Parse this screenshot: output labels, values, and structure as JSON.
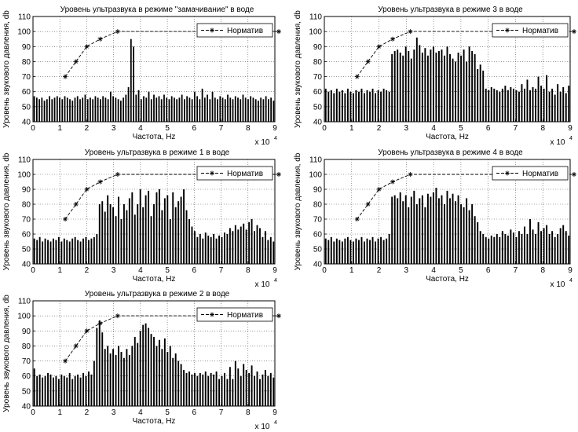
{
  "chart_data": [
    {
      "type": "bar",
      "title": "Уровень ультразвука в режиме \"замачивание\" в воде",
      "xlabel": "Частота, Hz",
      "ylabel": "Уровень звукового давления, db",
      "x_multiplier": "x 10",
      "x_exponent": "4",
      "xlim": [
        0,
        9
      ],
      "ylim": [
        40,
        110
      ],
      "xticks": [
        0,
        1,
        2,
        3,
        4,
        5,
        6,
        7,
        8,
        9
      ],
      "yticks": [
        40,
        50,
        60,
        70,
        80,
        90,
        100,
        110
      ],
      "grid": true,
      "legend": {
        "position": "top-right",
        "entries": [
          "Норматив"
        ]
      },
      "bar_color": "#000000",
      "norm": {
        "x": [
          1.2,
          1.6,
          2.0,
          2.5,
          3.15,
          9.0
        ],
        "y": [
          70,
          80,
          90,
          95,
          100,
          100
        ]
      },
      "bars": [
        57,
        56,
        55,
        56,
        54,
        55,
        57,
        55,
        56,
        57,
        56,
        55,
        57,
        56,
        55,
        54,
        56,
        57,
        55,
        56,
        58,
        55,
        56,
        55,
        57,
        56,
        55,
        57,
        56,
        55,
        60,
        57,
        56,
        55,
        54,
        56,
        58,
        63,
        95,
        90,
        58,
        61,
        55,
        57,
        56,
        60,
        55,
        58,
        56,
        57,
        55,
        58,
        56,
        55,
        57,
        56,
        55,
        56,
        58,
        55,
        57,
        56,
        55,
        60,
        57,
        55,
        62,
        56,
        58,
        55,
        60,
        56,
        55,
        57,
        56,
        55,
        58,
        56,
        55,
        57,
        56,
        55,
        58,
        56,
        55,
        57,
        56,
        55,
        54,
        56,
        55,
        57,
        55,
        56,
        54
      ]
    },
    {
      "type": "bar",
      "title": "Уровень ультразвука в режиме 3 в воде",
      "xlabel": "Частота, Hz",
      "ylabel": "Уровень звукового давления, db",
      "x_multiplier": "x 10",
      "x_exponent": "4",
      "xlim": [
        0,
        9
      ],
      "ylim": [
        40,
        110
      ],
      "xticks": [
        0,
        1,
        2,
        3,
        4,
        5,
        6,
        7,
        8,
        9
      ],
      "yticks": [
        40,
        50,
        60,
        70,
        80,
        90,
        100,
        110
      ],
      "grid": true,
      "legend": {
        "position": "top-right",
        "entries": [
          "Норматив"
        ]
      },
      "bar_color": "#000000",
      "norm": {
        "x": [
          1.2,
          1.6,
          2.0,
          2.5,
          3.15,
          9.0
        ],
        "y": [
          70,
          80,
          90,
          95,
          100,
          100
        ]
      },
      "bars": [
        62,
        60,
        61,
        59,
        62,
        60,
        61,
        59,
        62,
        60,
        59,
        61,
        60,
        62,
        59,
        61,
        60,
        62,
        59,
        61,
        60,
        62,
        61,
        60,
        85,
        87,
        88,
        86,
        84,
        90,
        87,
        82,
        88,
        96,
        91,
        86,
        89,
        84,
        88,
        90,
        86,
        87,
        88,
        84,
        90,
        85,
        82,
        80,
        86,
        84,
        88,
        80,
        90,
        87,
        85,
        75,
        78,
        74,
        62,
        61,
        63,
        62,
        61,
        60,
        62,
        64,
        61,
        63,
        62,
        61,
        60,
        65,
        62,
        68,
        61,
        63,
        62,
        70,
        64,
        62,
        71,
        60,
        62,
        58,
        65,
        60,
        63,
        59,
        64
      ]
    },
    {
      "type": "bar",
      "title": "Уровень ультразвука в режиме 1 в воде",
      "xlabel": "Частота, Hz",
      "ylabel": "Уровень звукового давления, db",
      "x_multiplier": "x 10",
      "x_exponent": "4",
      "xlim": [
        0,
        9
      ],
      "ylim": [
        40,
        110
      ],
      "xticks": [
        0,
        1,
        2,
        3,
        4,
        5,
        6,
        7,
        8,
        9
      ],
      "yticks": [
        40,
        50,
        60,
        70,
        80,
        90,
        100,
        110
      ],
      "grid": true,
      "legend": {
        "position": "top-right",
        "entries": [
          "Норматив"
        ]
      },
      "bar_color": "#000000",
      "norm": {
        "x": [
          1.2,
          1.6,
          2.0,
          2.5,
          3.15,
          9.0
        ],
        "y": [
          70,
          80,
          90,
          95,
          100,
          100
        ]
      },
      "bars": [
        57,
        56,
        58,
        55,
        57,
        56,
        55,
        57,
        56,
        58,
        55,
        57,
        56,
        55,
        57,
        58,
        56,
        55,
        57,
        58,
        56,
        57,
        58,
        60,
        80,
        82,
        75,
        86,
        80,
        78,
        72,
        85,
        70,
        80,
        76,
        84,
        88,
        73,
        80,
        90,
        78,
        86,
        89,
        72,
        80,
        88,
        90,
        76,
        84,
        86,
        70,
        88,
        78,
        82,
        85,
        90,
        76,
        70,
        65,
        62,
        58,
        60,
        57,
        61,
        59,
        58,
        60,
        57,
        59,
        58,
        61,
        60,
        64,
        62,
        66,
        63,
        65,
        67,
        63,
        68,
        70,
        62,
        66,
        64,
        58,
        62,
        56,
        58,
        55
      ]
    },
    {
      "type": "bar",
      "title": "Уровень ультразвука в режиме 4 в воде",
      "xlabel": "Частота, Hz",
      "ylabel": "Уровень звукового давления, db",
      "x_multiplier": "x 10",
      "x_exponent": "4",
      "xlim": [
        0,
        9
      ],
      "ylim": [
        40,
        110
      ],
      "xticks": [
        0,
        1,
        2,
        3,
        4,
        5,
        6,
        7,
        8,
        9
      ],
      "yticks": [
        40,
        50,
        60,
        70,
        80,
        90,
        100,
        110
      ],
      "grid": true,
      "legend": {
        "position": "top-right",
        "entries": [
          "Норматив"
        ]
      },
      "bar_color": "#000000",
      "norm": {
        "x": [
          1.2,
          1.6,
          2.0,
          2.5,
          3.15,
          9.0
        ],
        "y": [
          70,
          80,
          90,
          95,
          100,
          100
        ]
      },
      "bars": [
        57,
        56,
        58,
        55,
        57,
        56,
        55,
        57,
        58,
        56,
        55,
        57,
        56,
        58,
        55,
        57,
        56,
        58,
        55,
        57,
        58,
        56,
        57,
        60,
        85,
        86,
        84,
        88,
        82,
        86,
        78,
        85,
        89,
        80,
        84,
        86,
        78,
        87,
        85,
        88,
        91,
        84,
        86,
        80,
        89,
        84,
        87,
        82,
        86,
        80,
        78,
        84,
        76,
        80,
        72,
        68,
        62,
        60,
        58,
        57,
        59,
        58,
        60,
        58,
        62,
        60,
        59,
        63,
        61,
        58,
        62,
        60,
        65,
        60,
        70,
        63,
        60,
        68,
        62,
        64,
        66,
        60,
        62,
        58,
        60,
        64,
        66,
        62,
        59
      ]
    },
    {
      "type": "bar",
      "title": "Уровень ультразвука в режиме 2 в воде",
      "xlabel": "Частота, Hz",
      "ylabel": "Уровень звукового давления, db",
      "x_multiplier": "x 10",
      "x_exponent": "4",
      "xlim": [
        0,
        9
      ],
      "ylim": [
        40,
        110
      ],
      "xticks": [
        0,
        1,
        2,
        3,
        4,
        5,
        6,
        7,
        8,
        9
      ],
      "yticks": [
        40,
        50,
        60,
        70,
        80,
        90,
        100,
        110
      ],
      "grid": true,
      "legend": {
        "position": "top-right",
        "entries": [
          "Норматив"
        ]
      },
      "bar_color": "#000000",
      "norm": {
        "x": [
          1.2,
          1.6,
          2.0,
          2.5,
          3.15,
          9.0
        ],
        "y": [
          70,
          80,
          90,
          95,
          100,
          100
        ]
      },
      "bars": [
        65,
        60,
        61,
        59,
        60,
        62,
        61,
        59,
        60,
        58,
        61,
        60,
        59,
        62,
        58,
        60,
        61,
        59,
        62,
        60,
        63,
        61,
        70,
        92,
        97,
        89,
        78,
        80,
        75,
        78,
        74,
        80,
        76,
        72,
        78,
        74,
        80,
        86,
        82,
        90,
        94,
        95,
        92,
        88,
        86,
        80,
        84,
        78,
        85,
        76,
        80,
        72,
        75,
        70,
        68,
        64,
        62,
        63,
        61,
        62,
        60,
        62,
        61,
        63,
        60,
        62,
        61,
        63,
        58,
        60,
        62,
        58,
        66,
        58,
        70,
        65,
        60,
        68,
        64,
        62,
        67,
        60,
        63,
        58,
        61,
        64,
        60,
        62,
        59
      ]
    }
  ]
}
